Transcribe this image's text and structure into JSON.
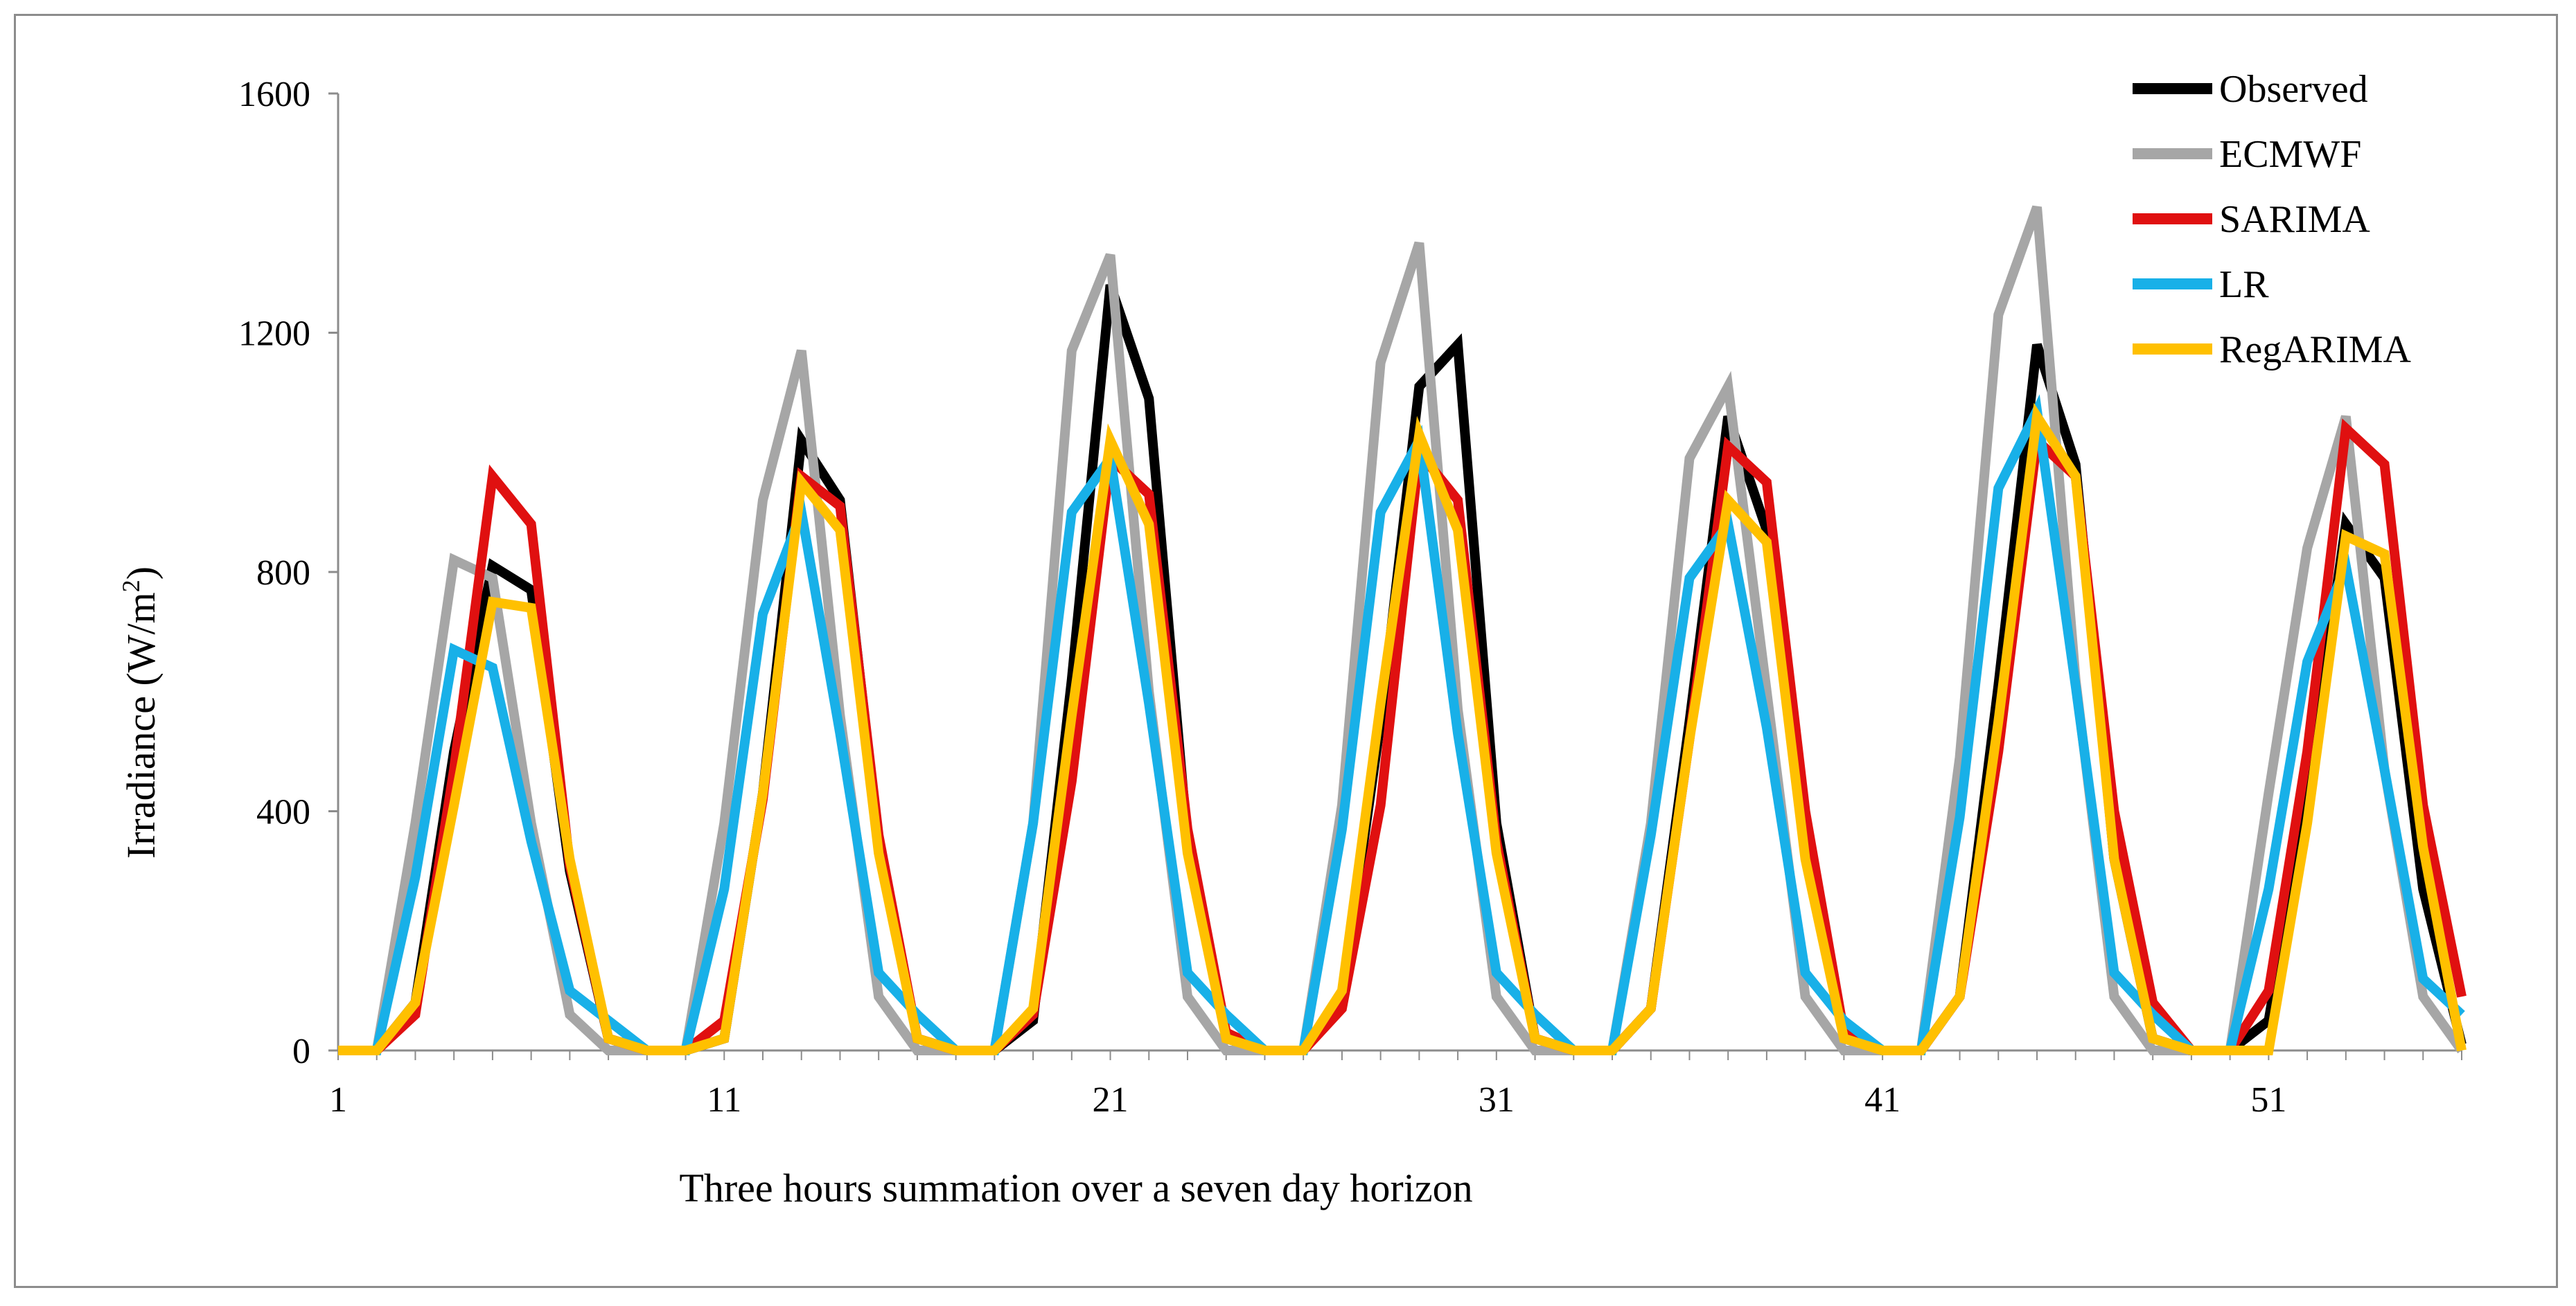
{
  "chart_data": {
    "type": "line",
    "title": "",
    "xlabel": "Three hours summation over a seven day horizon",
    "ylabel_main": "Irradiance (W/m",
    "ylabel_sup": "2",
    "ylabel_close": ")",
    "xlim": [
      1,
      56
    ],
    "ylim": [
      0,
      1600
    ],
    "x_ticks": [
      1,
      11,
      21,
      31,
      41,
      51
    ],
    "y_ticks": [
      0,
      400,
      800,
      1200,
      1600
    ],
    "legend_position": "top-right",
    "x": [
      1,
      2,
      3,
      4,
      5,
      6,
      7,
      8,
      9,
      10,
      11,
      12,
      13,
      14,
      15,
      16,
      17,
      18,
      19,
      20,
      21,
      22,
      23,
      24,
      25,
      26,
      27,
      28,
      29,
      30,
      31,
      32,
      33,
      34,
      35,
      36,
      37,
      38,
      39,
      40,
      41,
      42,
      43,
      44,
      45,
      46,
      47,
      48,
      49,
      50,
      51,
      52,
      53,
      54,
      55,
      56
    ],
    "series": [
      {
        "name": "Observed",
        "color": "#000000",
        "values": [
          0,
          0,
          80,
          500,
          810,
          770,
          300,
          20,
          0,
          0,
          20,
          430,
          1020,
          920,
          350,
          20,
          0,
          0,
          50,
          620,
          1280,
          1090,
          350,
          20,
          0,
          0,
          90,
          550,
          1110,
          1180,
          380,
          20,
          0,
          0,
          70,
          550,
          1060,
          870,
          380,
          20,
          0,
          0,
          90,
          610,
          1180,
          980,
          320,
          20,
          0,
          0,
          50,
          430,
          880,
          790,
          270,
          10
        ]
      },
      {
        "name": "ECMWF",
        "color": "#a6a6a6",
        "values": [
          0,
          0,
          380,
          820,
          790,
          380,
          60,
          0,
          0,
          0,
          380,
          920,
          1170,
          560,
          90,
          0,
          0,
          0,
          380,
          1170,
          1330,
          600,
          90,
          0,
          0,
          0,
          410,
          1150,
          1350,
          570,
          90,
          0,
          0,
          0,
          380,
          990,
          1110,
          600,
          90,
          0,
          0,
          0,
          490,
          1230,
          1410,
          620,
          90,
          0,
          0,
          0,
          430,
          840,
          1060,
          470,
          90,
          0
        ]
      },
      {
        "name": "SARIMA",
        "color": "#e01010",
        "values": [
          0,
          0,
          60,
          470,
          960,
          880,
          310,
          20,
          0,
          0,
          50,
          420,
          960,
          910,
          360,
          20,
          0,
          0,
          60,
          450,
          990,
          930,
          370,
          30,
          0,
          0,
          70,
          410,
          1000,
          920,
          350,
          20,
          0,
          0,
          70,
          520,
          1010,
          950,
          400,
          30,
          0,
          0,
          90,
          500,
          1020,
          960,
          400,
          80,
          0,
          0,
          100,
          500,
          1040,
          980,
          410,
          90
        ]
      },
      {
        "name": "LR",
        "color": "#18b0e8",
        "values": [
          0,
          0,
          290,
          670,
          640,
          350,
          100,
          50,
          0,
          0,
          270,
          730,
          900,
          530,
          130,
          60,
          0,
          0,
          380,
          900,
          990,
          580,
          130,
          60,
          0,
          0,
          370,
          900,
          1020,
          530,
          130,
          60,
          0,
          0,
          360,
          790,
          880,
          540,
          130,
          50,
          0,
          0,
          390,
          940,
          1070,
          610,
          130,
          60,
          0,
          0,
          270,
          650,
          810,
          470,
          120,
          60
        ]
      },
      {
        "name": "RegARIMA",
        "color": "#ffc000",
        "values": [
          0,
          0,
          80,
          410,
          750,
          740,
          320,
          20,
          0,
          0,
          20,
          430,
          950,
          870,
          330,
          20,
          0,
          0,
          70,
          560,
          1020,
          880,
          330,
          20,
          0,
          0,
          100,
          580,
          1030,
          870,
          330,
          20,
          0,
          0,
          70,
          520,
          920,
          850,
          320,
          20,
          0,
          0,
          90,
          550,
          1060,
          960,
          320,
          20,
          0,
          0,
          0,
          380,
          860,
          830,
          340,
          0
        ]
      }
    ]
  }
}
